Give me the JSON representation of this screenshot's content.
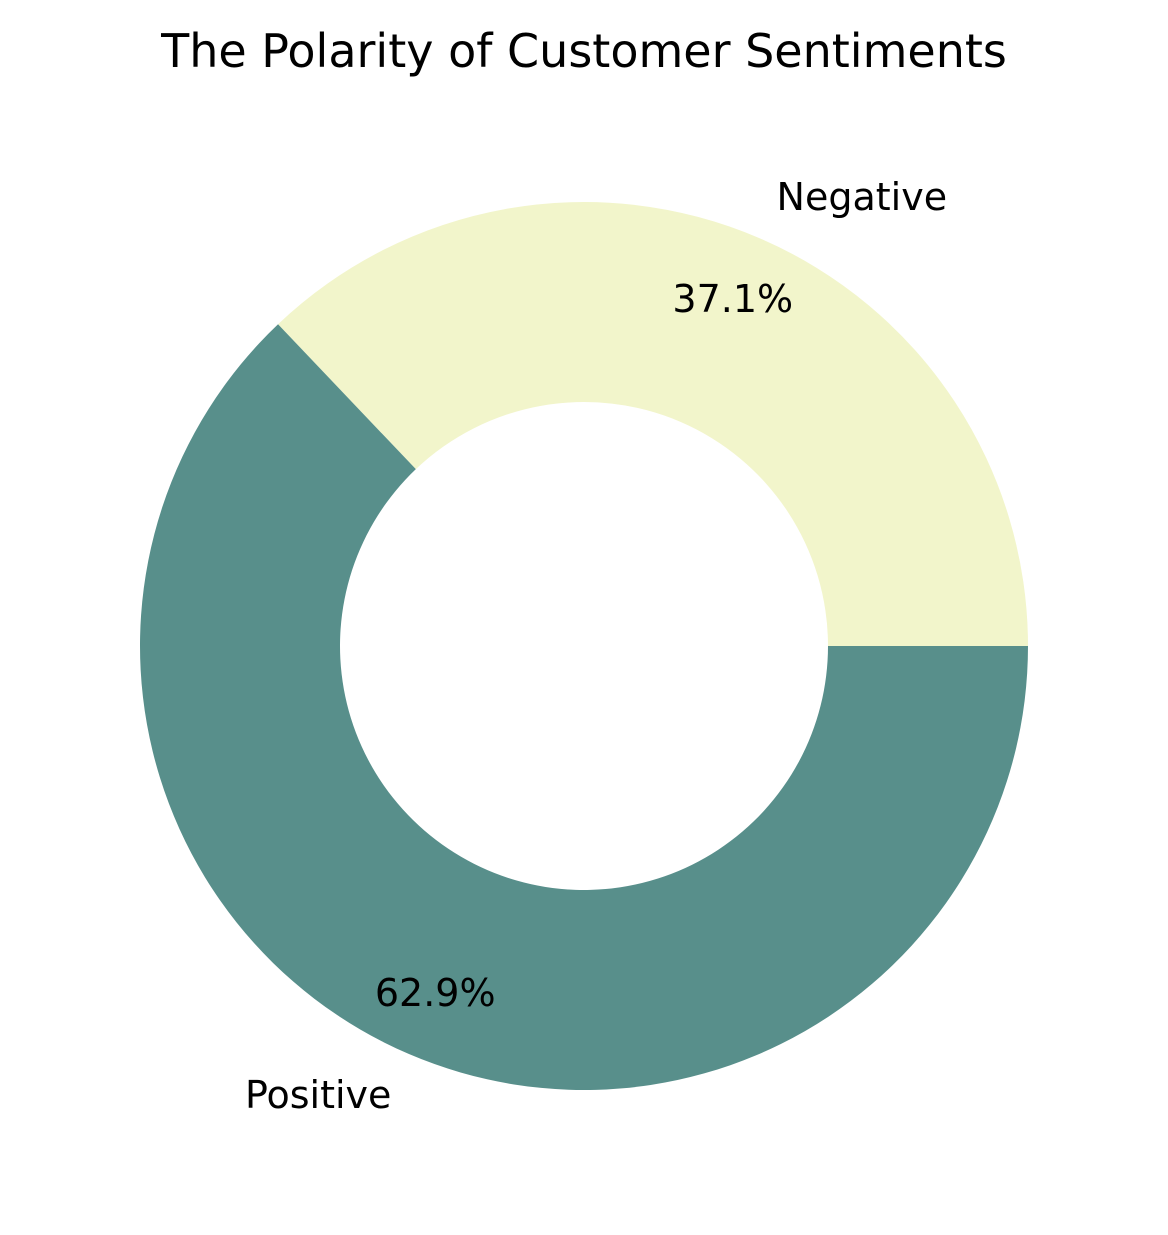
{
  "chart_data": {
    "type": "pie",
    "title": "The Polarity of Customer Sentiments",
    "donut": true,
    "start_angle_deg": 0,
    "direction": "counterclockwise",
    "slices": [
      {
        "label": "Negative",
        "value": 37.1,
        "pct_label": "37.1%",
        "color": "#F2F5CB"
      },
      {
        "label": "Positive",
        "value": 62.9,
        "pct_label": "62.9%",
        "color": "#588F8B"
      }
    ]
  }
}
